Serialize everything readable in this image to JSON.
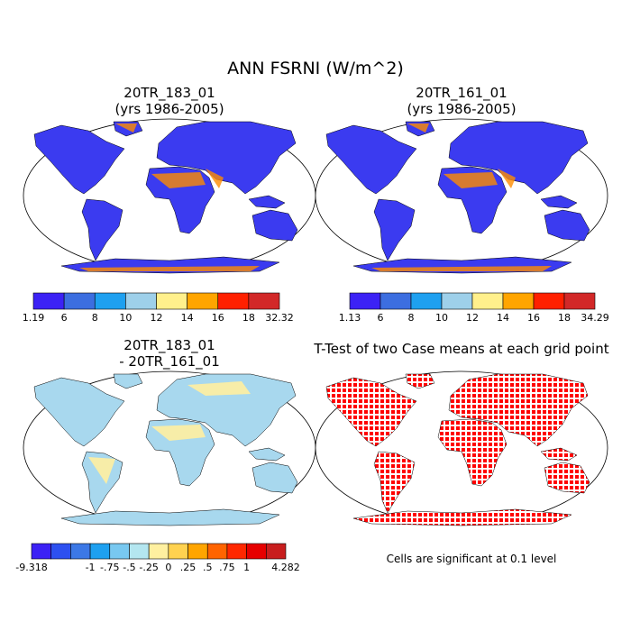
{
  "title": "ANN FSRNI (W/m^2)",
  "panels": [
    {
      "title": [
        "20TR_183_01",
        "(yrs 1986-2005)"
      ],
      "colorbar": {
        "colors": [
          "#3c22f5",
          "#3c6ee0",
          "#1ea0f0",
          "#9ed0ea",
          "#fff08c",
          "#ffa500",
          "#ff2000",
          "#d22828"
        ],
        "labels": [
          "1.19",
          "6",
          "8",
          "10",
          "12",
          "14",
          "16",
          "18",
          "32.32"
        ]
      }
    },
    {
      "title": [
        "20TR_161_01",
        "(yrs 1986-2005)"
      ],
      "colorbar": {
        "colors": [
          "#3c22f5",
          "#3c6ee0",
          "#1ea0f0",
          "#9ed0ea",
          "#fff08c",
          "#ffa500",
          "#ff2000",
          "#d22828"
        ],
        "labels": [
          "1.13",
          "6",
          "8",
          "10",
          "12",
          "14",
          "16",
          "18",
          "34.29"
        ]
      }
    },
    {
      "title": [
        "20TR_183_01",
        "- 20TR_161_01"
      ],
      "colorbar": {
        "colors": [
          "#3c22f5",
          "#2d50f0",
          "#3c78e6",
          "#1ea0f0",
          "#78c8f0",
          "#b4e6f0",
          "#fff0a0",
          "#ffd250",
          "#ffa500",
          "#ff6400",
          "#ff2800",
          "#e60000",
          "#c81e1e"
        ],
        "labels": [
          "-9.318",
          null,
          null,
          "-1",
          "-.75",
          "-.5",
          "-.25",
          "0",
          ".25",
          ".5",
          ".75",
          "1",
          null,
          "4.282"
        ]
      }
    },
    {
      "title": [
        "T-Test of two Case means at each grid point"
      ],
      "note": "Cells are significant at 0.1 level"
    }
  ]
}
